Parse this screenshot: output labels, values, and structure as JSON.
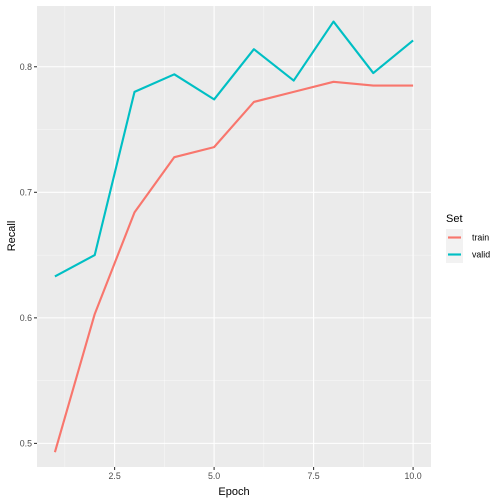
{
  "chart_data": {
    "type": "line",
    "xlabel": "Epoch",
    "ylabel": "Recall",
    "xlim": [
      0.55,
      10.45
    ],
    "ylim": [
      0.4812,
      0.8484
    ],
    "x_ticks": [
      2.5,
      5.0,
      7.5,
      10.0
    ],
    "x_tick_labels": [
      "2.5",
      "5.0",
      "7.5",
      "10.0"
    ],
    "y_ticks": [
      0.5,
      0.6,
      0.7,
      0.8
    ],
    "y_tick_labels": [
      "0.5",
      "0.6",
      "0.7",
      "0.8"
    ],
    "grid": true,
    "legend": {
      "title": "Set",
      "placement": "right"
    },
    "x": [
      1,
      2,
      3,
      4,
      5,
      6,
      7,
      8,
      9,
      10
    ],
    "series": [
      {
        "name": "train",
        "color": "#F8766D",
        "values": [
          0.493,
          0.603,
          0.684,
          0.728,
          0.736,
          0.772,
          0.78,
          0.788,
          0.785,
          0.785
        ]
      },
      {
        "name": "valid",
        "color": "#00BFC4",
        "values": [
          0.633,
          0.65,
          0.78,
          0.794,
          0.774,
          0.814,
          0.789,
          0.836,
          0.795,
          0.821
        ]
      }
    ]
  },
  "colors": {
    "panel": "#EBEBEB",
    "grid_major": "#FFFFFF",
    "tick": "#333333"
  }
}
